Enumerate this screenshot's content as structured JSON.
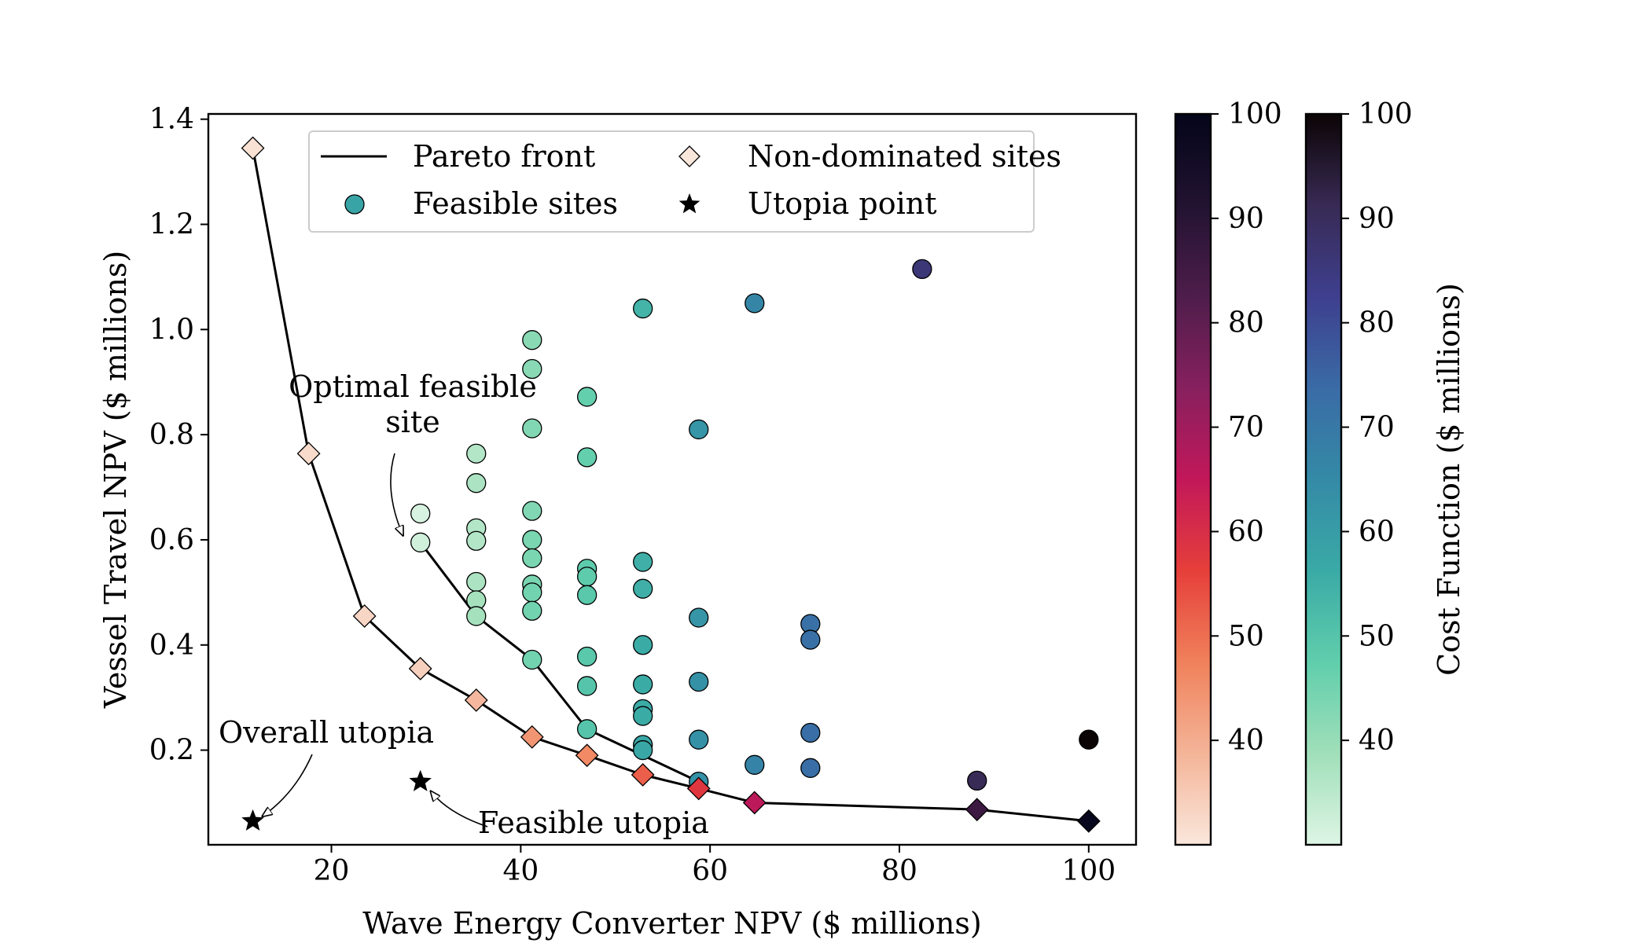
{
  "chart_data": {
    "type": "scatter",
    "xlabel": "Wave Energy Converter NPV ($ millions)",
    "ylabel": "Vessel Travel NPV ($ millions)",
    "xlim": [
      7,
      105
    ],
    "ylim": [
      0.02,
      1.41
    ],
    "xticks": [
      20,
      40,
      60,
      80,
      100
    ],
    "yticks": [
      0.2,
      0.4,
      0.6,
      0.8,
      1.0,
      1.2,
      1.4
    ],
    "legend": {
      "position": "upper-center",
      "entries": [
        {
          "label": "Pareto front",
          "marker": "line"
        },
        {
          "label": "Non-dominated sites",
          "marker": "diamond"
        },
        {
          "label": "Feasible sites",
          "marker": "circle"
        },
        {
          "label": "Utopia point",
          "marker": "star"
        }
      ]
    },
    "colorbars": [
      {
        "colormap": "rocket (light peach to near-black)",
        "min": 30,
        "max": 100,
        "ticks": [
          40,
          50,
          60,
          70,
          80,
          90,
          100
        ],
        "label": "",
        "stops": [
          "#fae7dc",
          "#f4b498",
          "#f0815b",
          "#e63f3a",
          "#c2185a",
          "#87205e",
          "#4e1d4b",
          "#221331",
          "#03051a"
        ]
      },
      {
        "colormap": "mako (light mint to near-black)",
        "min": 30,
        "max": 100,
        "ticks": [
          40,
          50,
          60,
          70,
          80,
          90,
          100
        ],
        "label": "Cost Function ($ millions)",
        "stops": [
          "#def5e5",
          "#a0dfb9",
          "#60ceac",
          "#3aaaa6",
          "#348aa6",
          "#3a6ba6",
          "#3e3f8e",
          "#382a54",
          "#0b0405"
        ]
      }
    ],
    "pareto_front": {
      "x": [
        11.7,
        17.6,
        23.5,
        29.4,
        35.3,
        41.2,
        47.0,
        52.9,
        58.8,
        64.7,
        88.2,
        100.0
      ],
      "y": [
        1.345,
        0.764,
        0.455,
        0.355,
        0.295,
        0.225,
        0.19,
        0.153,
        0.127,
        0.1,
        0.087,
        0.065
      ]
    },
    "feasible_front": {
      "x": [
        29.4,
        35.3,
        41.2,
        47.0,
        52.9,
        58.8
      ],
      "y": [
        0.595,
        0.455,
        0.372,
        0.24,
        0.19,
        0.14
      ]
    },
    "non_dominated_sites": {
      "x": [
        11.7,
        17.6,
        23.5,
        29.4,
        35.3,
        41.2,
        47.0,
        52.9,
        58.8,
        64.7,
        88.2,
        100.0
      ],
      "y": [
        1.345,
        0.764,
        0.455,
        0.355,
        0.295,
        0.225,
        0.19,
        0.153,
        0.127,
        0.1,
        0.087,
        0.065
      ],
      "cost": [
        31,
        32,
        33,
        34,
        38,
        44,
        46,
        52,
        58,
        66,
        86,
        99
      ]
    },
    "feasible_sites": {
      "points": [
        [
          29.4,
          0.65,
          31
        ],
        [
          29.4,
          0.595,
          32
        ],
        [
          35.3,
          0.764,
          36
        ],
        [
          35.3,
          0.708,
          37
        ],
        [
          35.3,
          0.622,
          36
        ],
        [
          35.3,
          0.598,
          36
        ],
        [
          35.3,
          0.52,
          37
        ],
        [
          35.3,
          0.485,
          38
        ],
        [
          35.3,
          0.455,
          38
        ],
        [
          41.2,
          0.98,
          42
        ],
        [
          41.2,
          0.925,
          42
        ],
        [
          41.2,
          0.812,
          43
        ],
        [
          41.2,
          0.655,
          43
        ],
        [
          41.2,
          0.6,
          44
        ],
        [
          41.2,
          0.565,
          44
        ],
        [
          41.2,
          0.515,
          44
        ],
        [
          41.2,
          0.5,
          45
        ],
        [
          41.2,
          0.465,
          45
        ],
        [
          41.2,
          0.372,
          45
        ],
        [
          47.0,
          0.872,
          47
        ],
        [
          47.0,
          0.757,
          47
        ],
        [
          47.0,
          0.545,
          48
        ],
        [
          47.0,
          0.53,
          48
        ],
        [
          47.0,
          0.495,
          49
        ],
        [
          47.0,
          0.378,
          49
        ],
        [
          47.0,
          0.322,
          50
        ],
        [
          47.0,
          0.24,
          50
        ],
        [
          52.9,
          1.04,
          54
        ],
        [
          52.9,
          0.558,
          55
        ],
        [
          52.9,
          0.507,
          55
        ],
        [
          52.9,
          0.4,
          56
        ],
        [
          52.9,
          0.325,
          56
        ],
        [
          52.9,
          0.278,
          56
        ],
        [
          52.9,
          0.265,
          56
        ],
        [
          52.9,
          0.21,
          57
        ],
        [
          52.9,
          0.2,
          57
        ],
        [
          58.8,
          0.81,
          62
        ],
        [
          58.8,
          0.452,
          62
        ],
        [
          58.8,
          0.33,
          63
        ],
        [
          58.8,
          0.22,
          63
        ],
        [
          58.8,
          0.14,
          63
        ],
        [
          64.7,
          1.05,
          66
        ],
        [
          64.7,
          0.172,
          67
        ],
        [
          70.6,
          0.44,
          72
        ],
        [
          70.6,
          0.41,
          72
        ],
        [
          70.6,
          0.233,
          73
        ],
        [
          70.6,
          0.166,
          73
        ],
        [
          82.4,
          1.115,
          86
        ],
        [
          88.2,
          0.142,
          91
        ],
        [
          100.0,
          0.22,
          100
        ]
      ]
    },
    "utopia_points": [
      {
        "label": "Overall utopia",
        "x": 11.7,
        "y": 0.065
      },
      {
        "label": "Feasible utopia",
        "x": 29.4,
        "y": 0.14
      }
    ],
    "annotations": [
      {
        "text_lines": [
          "Optimal feasible",
          "site"
        ],
        "target": [
          29.4,
          0.62
        ]
      },
      {
        "text_lines": [
          "Overall utopia"
        ],
        "target": [
          11.7,
          0.065
        ]
      },
      {
        "text_lines": [
          "Feasible utopia"
        ],
        "target": [
          29.4,
          0.14
        ]
      }
    ]
  }
}
